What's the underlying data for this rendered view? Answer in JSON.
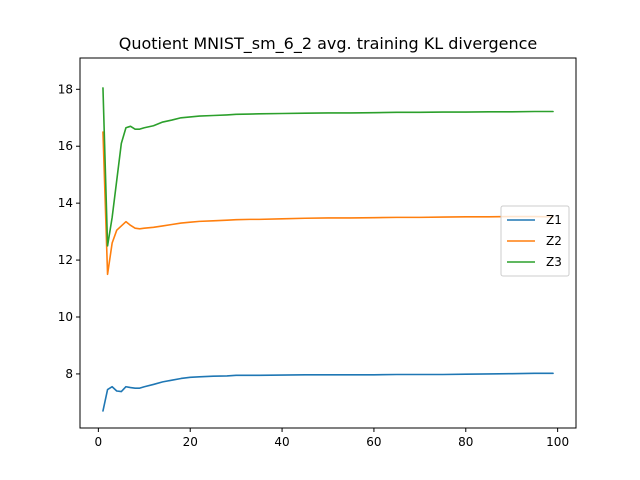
{
  "chart_data": {
    "type": "line",
    "title": "Quotient MNIST_sm_6_2 avg. training KL divergence",
    "xlabel": "",
    "ylabel": "",
    "xlim": [
      -4,
      104
    ],
    "ylim": [
      6.1,
      19.1
    ],
    "xticks": [
      0,
      20,
      40,
      60,
      80,
      100
    ],
    "yticks": [
      8,
      10,
      12,
      14,
      16,
      18
    ],
    "grid": false,
    "legend_position": "center-right",
    "series": [
      {
        "name": "Z1",
        "color": "#1f77b4",
        "x": [
          1,
          2,
          3,
          4,
          5,
          6,
          7,
          8,
          9,
          10,
          12,
          14,
          16,
          18,
          20,
          22,
          25,
          28,
          30,
          33,
          35,
          40,
          45,
          50,
          55,
          60,
          65,
          70,
          75,
          80,
          85,
          90,
          95,
          99
        ],
        "y": [
          6.7,
          7.45,
          7.55,
          7.4,
          7.38,
          7.55,
          7.52,
          7.5,
          7.5,
          7.55,
          7.63,
          7.72,
          7.78,
          7.84,
          7.88,
          7.9,
          7.92,
          7.93,
          7.95,
          7.95,
          7.95,
          7.96,
          7.97,
          7.97,
          7.97,
          7.97,
          7.98,
          7.98,
          7.98,
          7.99,
          8.0,
          8.01,
          8.02,
          8.02
        ]
      },
      {
        "name": "Z2",
        "color": "#ff7f0e",
        "x": [
          1,
          2,
          3,
          4,
          5,
          6,
          7,
          8,
          9,
          10,
          12,
          14,
          16,
          18,
          20,
          22,
          25,
          28,
          30,
          33,
          35,
          40,
          45,
          50,
          55,
          60,
          65,
          70,
          75,
          80,
          85,
          90,
          95,
          99
        ],
        "y": [
          16.5,
          11.5,
          12.6,
          13.05,
          13.2,
          13.35,
          13.22,
          13.12,
          13.1,
          13.12,
          13.15,
          13.2,
          13.25,
          13.3,
          13.33,
          13.36,
          13.38,
          13.4,
          13.42,
          13.43,
          13.43,
          13.45,
          13.47,
          13.48,
          13.48,
          13.49,
          13.5,
          13.5,
          13.51,
          13.52,
          13.52,
          13.53,
          13.53,
          13.52
        ]
      },
      {
        "name": "Z3",
        "color": "#2ca02c",
        "x": [
          1,
          2,
          3,
          4,
          5,
          6,
          7,
          8,
          9,
          10,
          12,
          14,
          16,
          18,
          20,
          22,
          25,
          28,
          30,
          33,
          35,
          40,
          45,
          50,
          55,
          60,
          65,
          70,
          75,
          80,
          85,
          90,
          95,
          99
        ],
        "y": [
          18.05,
          12.5,
          13.5,
          14.8,
          16.1,
          16.65,
          16.7,
          16.6,
          16.6,
          16.65,
          16.72,
          16.85,
          16.92,
          17.0,
          17.03,
          17.06,
          17.08,
          17.1,
          17.12,
          17.13,
          17.14,
          17.15,
          17.16,
          17.17,
          17.17,
          17.18,
          17.19,
          17.19,
          17.2,
          17.2,
          17.21,
          17.21,
          17.22,
          17.22
        ]
      }
    ]
  }
}
